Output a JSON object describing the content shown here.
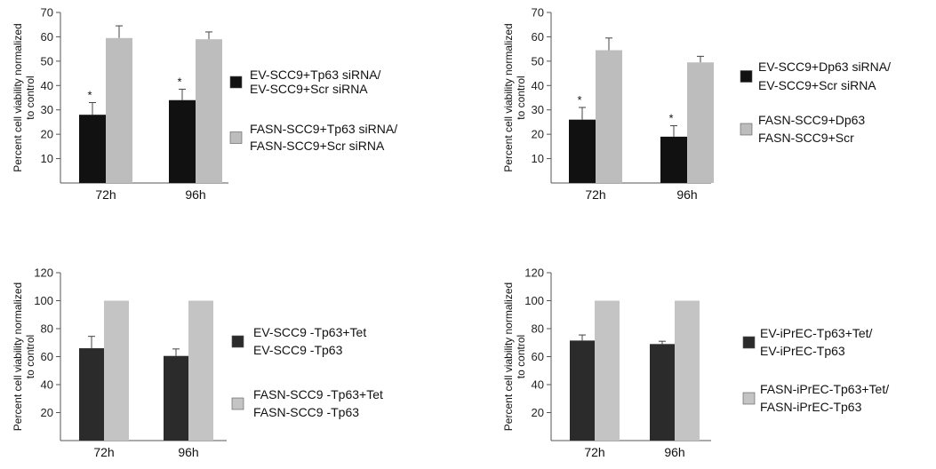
{
  "chart_data": [
    {
      "type": "bar",
      "categories": [
        "72h",
        "96h"
      ],
      "ylim": [
        0,
        70
      ],
      "yticks": [
        10,
        20,
        30,
        40,
        50,
        60,
        70
      ],
      "ylabel": [
        "Percent cell viability normalized",
        "to control"
      ],
      "series": [
        {
          "name": [
            "EV-SCC9+Tp63 siRNA/",
            "EV-SCC9+Scr siRNA"
          ],
          "color": "#111111",
          "values": [
            28,
            34
          ],
          "errors": [
            5,
            4.5
          ]
        },
        {
          "name": [
            "FASN-SCC9+Tp63 siRNA/",
            "FASN-SCC9+Scr siRNA"
          ],
          "color": "#bdbdbd",
          "values": [
            59.5,
            59
          ],
          "errors": [
            5,
            3
          ]
        }
      ],
      "annotations": [
        {
          "text": "*",
          "category": "72h",
          "series": 0
        },
        {
          "text": "*",
          "category": "96h",
          "series": 0
        }
      ]
    },
    {
      "type": "bar",
      "categories": [
        "72h",
        "96h"
      ],
      "ylim": [
        0,
        70
      ],
      "yticks": [
        10,
        20,
        30,
        40,
        50,
        60,
        70
      ],
      "ylabel": [
        "Percent cell viability normalized",
        "to control"
      ],
      "series": [
        {
          "name": [
            "EV-SCC9+Dp63 siRNA/",
            "EV-SCC9+Scr siRNA"
          ],
          "color": "#111111",
          "values": [
            26,
            19
          ],
          "errors": [
            5,
            4.5
          ]
        },
        {
          "name": [
            "FASN-SCC9+Dp63",
            "FASN-SCC9+Scr"
          ],
          "color": "#bdbdbd",
          "values": [
            54.5,
            49.5
          ],
          "errors": [
            5,
            2.5
          ]
        }
      ],
      "annotations": [
        {
          "text": "*",
          "category": "72h",
          "series": 0
        },
        {
          "text": "*",
          "category": "96h",
          "series": 0
        }
      ]
    },
    {
      "type": "bar",
      "categories": [
        "72h",
        "96h"
      ],
      "ylim": [
        0,
        120
      ],
      "yticks": [
        20,
        40,
        60,
        80,
        100,
        120
      ],
      "ylabel": [
        "Percent cell viability normalized",
        "to control"
      ],
      "series": [
        {
          "name": [
            "EV-SCC9 -Tp63+Tet",
            "EV-SCC9 -Tp63"
          ],
          "color": "#2b2b2b",
          "values": [
            66,
            60.5
          ],
          "errors": [
            8.5,
            5
          ]
        },
        {
          "name": [
            "FASN-SCC9 -Tp63+Tet",
            "FASN-SCC9 -Tp63"
          ],
          "color": "#c4c4c4",
          "values": [
            100,
            100
          ],
          "errors": [
            0,
            0
          ]
        }
      ],
      "annotations": []
    },
    {
      "type": "bar",
      "categories": [
        "72h",
        "96h"
      ],
      "ylim": [
        0,
        120
      ],
      "yticks": [
        20,
        40,
        60,
        80,
        100,
        120
      ],
      "ylabel": [
        "Percent cell viability normalized",
        "to control"
      ],
      "series": [
        {
          "name": [
            "EV-iPrEC-Tp63+Tet/",
            "EV-iPrEC-Tp63"
          ],
          "color": "#2b2b2b",
          "values": [
            71.5,
            69
          ],
          "errors": [
            4,
            2
          ]
        },
        {
          "name": [
            "FASN-iPrEC-Tp63+Tet/",
            "FASN-iPrEC-Tp63"
          ],
          "color": "#c4c4c4",
          "values": [
            100,
            100
          ],
          "errors": [
            0,
            0
          ]
        }
      ],
      "annotations": []
    }
  ]
}
